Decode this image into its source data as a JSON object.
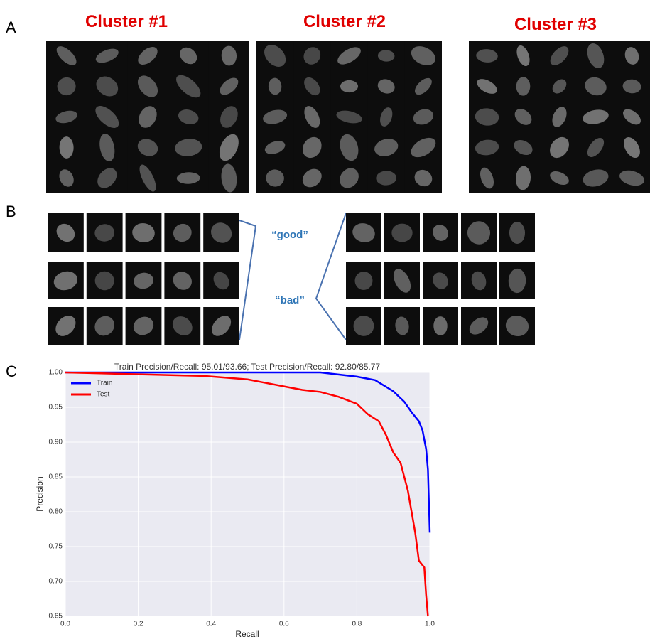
{
  "panels": {
    "a": {
      "label": "A",
      "clusters": [
        "Cluster #1",
        "Cluster #2",
        "Cluster #3"
      ]
    },
    "b": {
      "label": "B",
      "good": "“good”",
      "bad": "“bad”"
    },
    "c": {
      "label": "C"
    }
  },
  "chart_data": {
    "type": "line",
    "title": "Train Precision/Recall: 95.01/93.66; Test Precision/Recall: 92.80/85.77",
    "x_label": "Recall",
    "y_label": "Precision",
    "xlim": [
      0,
      1
    ],
    "ylim": [
      0.65,
      1
    ],
    "xticks": [
      {
        "value": 0,
        "label": "0.0"
      },
      0.2,
      0.4,
      0.6,
      0.8,
      {
        "value": 1,
        "label": "1.0"
      }
    ],
    "yticks": [
      0.65,
      {
        "value": 0.7,
        "label": "0.70"
      },
      0.75,
      {
        "value": 0.8,
        "label": "0.80"
      },
      0.85,
      {
        "value": 0.9,
        "label": "0.90"
      },
      0.95,
      {
        "value": 1,
        "label": "1.00"
      }
    ],
    "grid": true,
    "legend": "upper-left",
    "series": [
      {
        "name": "Train",
        "color": "#0000ff",
        "x": [
          0,
          0.7,
          0.8,
          0.85,
          0.9,
          0.93,
          0.95,
          0.97,
          0.98,
          0.99,
          0.995,
          1
        ],
        "values": [
          1,
          1,
          0.994,
          0.989,
          0.973,
          0.958,
          0.943,
          0.93,
          0.917,
          0.89,
          0.86,
          0.77
        ]
      },
      {
        "name": "Test",
        "color": "#ff0000",
        "x": [
          0,
          0.38,
          0.5,
          0.55,
          0.6,
          0.65,
          0.7,
          0.75,
          0.8,
          0.83,
          0.86,
          0.88,
          0.9,
          0.92,
          0.94,
          0.95,
          0.96,
          0.97,
          0.985,
          0.99,
          0.995
        ],
        "values": [
          1,
          0.995,
          0.99,
          0.985,
          0.98,
          0.975,
          0.972,
          0.965,
          0.955,
          0.94,
          0.93,
          0.91,
          0.885,
          0.87,
          0.83,
          0.8,
          0.77,
          0.73,
          0.72,
          0.68,
          0.65
        ]
      }
    ]
  }
}
